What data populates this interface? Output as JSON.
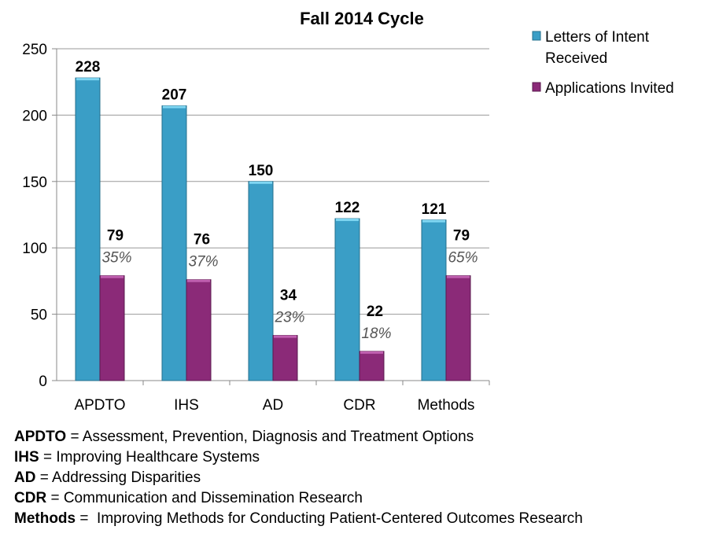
{
  "chart_data": {
    "type": "bar",
    "title": "Fall 2014 Cycle",
    "categories": [
      "APDTO",
      "IHS",
      "AD",
      "CDR",
      "Methods"
    ],
    "series": [
      {
        "name": "Letters of Intent Received",
        "values": [
          228,
          207,
          150,
          122,
          121
        ],
        "color": "#3A9EC6"
      },
      {
        "name": "Applications Invited",
        "values": [
          79,
          76,
          34,
          22,
          79
        ],
        "color": "#8B2A78",
        "percent_labels": [
          "35%",
          "37%",
          "23%",
          "18%",
          "65%"
        ]
      }
    ],
    "ylim": [
      0,
      250
    ],
    "yticks": [
      0,
      50,
      100,
      150,
      200,
      250
    ],
    "grid": true,
    "legend": "top-right"
  },
  "footnotes": [
    {
      "abbr": "APDTO",
      "text": " = Assessment, Prevention, Diagnosis and Treatment Options"
    },
    {
      "abbr": "IHS",
      "text": " = Improving Healthcare Systems"
    },
    {
      "abbr": "AD",
      "text": " = Addressing Disparities"
    },
    {
      "abbr": "CDR",
      "text": " = Communication and Dissemination Research"
    },
    {
      "abbr": "Methods",
      "text": " =  Improving Methods for Conducting Patient-Centered Outcomes Research"
    }
  ]
}
